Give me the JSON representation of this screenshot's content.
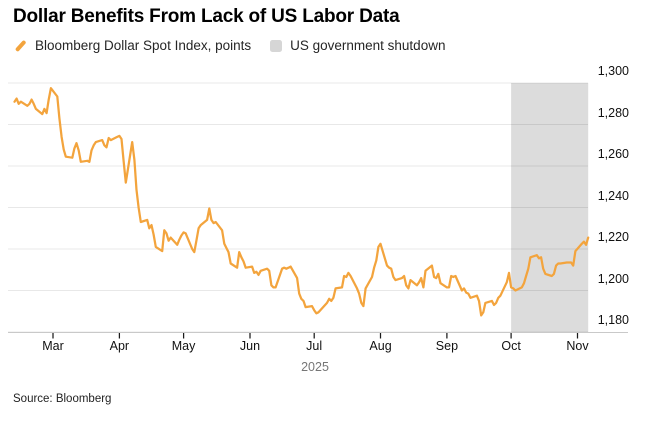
{
  "source": "Source: Bloomberg",
  "legend": {
    "items": [
      {
        "label": "Bloomberg Dollar Spot Index, points",
        "marker": "line",
        "color": "#F3A43D",
        "icon": "line-series-icon"
      },
      {
        "label": "US government shutdown",
        "marker": "square",
        "color": "#D6D6D6",
        "icon": "shutdown-swatch-icon"
      }
    ]
  },
  "chart_data": {
    "type": "line",
    "title": "Dollar Benefits From Lack of US Labor Data",
    "grid": "horizontal",
    "legend_position": "top",
    "colors": {
      "line": "#F3A43D",
      "band": "#DCDCDC",
      "axis": "#C9C9C9",
      "tick": "#1a1a1a"
    },
    "shaded_region": {
      "label": "US government shutdown",
      "start": "2025-10-01",
      "end": "2025-11-06",
      "color": "#DCDCDC"
    },
    "x_axis": {
      "year_label": "2025",
      "tick_labels": [
        "Mar",
        "Apr",
        "May",
        "Jun",
        "Jul",
        "Aug",
        "Sep",
        "Oct",
        "Nov"
      ],
      "tick_dates": [
        "2025-03-01",
        "2025-04-01",
        "2025-05-01",
        "2025-06-01",
        "2025-07-01",
        "2025-08-01",
        "2025-09-01",
        "2025-10-01",
        "2025-11-01"
      ]
    },
    "y_axis": {
      "side": "right",
      "range": [
        1180,
        1300
      ],
      "ticks": [
        {
          "value": 1300,
          "label": "1,300"
        },
        {
          "value": 1280,
          "label": "1,280"
        },
        {
          "value": 1260,
          "label": "1,260"
        },
        {
          "value": 1240,
          "label": "1,240"
        },
        {
          "value": 1220,
          "label": "1,220"
        },
        {
          "value": 1200,
          "label": "1,200"
        },
        {
          "value": 1180,
          "label": "1,180"
        }
      ]
    },
    "series": [
      {
        "name": "Bloomberg Dollar Spot Index, points",
        "color": "#F3A43D",
        "unit": "points",
        "year": "2025",
        "dates": [
          "02-11",
          "02-12",
          "02-13",
          "02-14",
          "02-17",
          "02-18",
          "02-19",
          "02-20",
          "02-21",
          "02-24",
          "02-25",
          "02-26",
          "02-27",
          "02-28",
          "03-03",
          "03-04",
          "03-05",
          "03-06",
          "03-07",
          "03-10",
          "03-11",
          "03-12",
          "03-13",
          "03-14",
          "03-17",
          "03-18",
          "03-19",
          "03-20",
          "03-21",
          "03-24",
          "03-25",
          "03-26",
          "03-27",
          "03-28",
          "03-31",
          "04-01",
          "04-02",
          "04-03",
          "04-04",
          "04-07",
          "04-08",
          "04-09",
          "04-10",
          "04-11",
          "04-14",
          "04-15",
          "04-16",
          "04-17",
          "04-18",
          "04-21",
          "04-22",
          "04-23",
          "04-24",
          "04-25",
          "04-28",
          "04-29",
          "04-30",
          "05-01",
          "05-02",
          "05-05",
          "05-06",
          "05-07",
          "05-08",
          "05-09",
          "05-12",
          "05-13",
          "05-14",
          "05-15",
          "05-16",
          "05-19",
          "05-20",
          "05-21",
          "05-22",
          "05-23",
          "05-26",
          "05-27",
          "05-28",
          "05-29",
          "05-30",
          "06-02",
          "06-03",
          "06-04",
          "06-05",
          "06-06",
          "06-09",
          "06-10",
          "06-11",
          "06-12",
          "06-13",
          "06-16",
          "06-17",
          "06-18",
          "06-19",
          "06-20",
          "06-23",
          "06-24",
          "06-25",
          "06-26",
          "06-27",
          "06-30",
          "07-01",
          "07-02",
          "07-03",
          "07-07",
          "07-08",
          "07-09",
          "07-10",
          "07-11",
          "07-14",
          "07-15",
          "07-16",
          "07-17",
          "07-18",
          "07-21",
          "07-22",
          "07-23",
          "07-24",
          "07-25",
          "07-28",
          "07-29",
          "07-30",
          "07-31",
          "08-01",
          "08-04",
          "08-05",
          "08-06",
          "08-07",
          "08-08",
          "08-11",
          "08-12",
          "08-13",
          "08-14",
          "08-15",
          "08-18",
          "08-19",
          "08-20",
          "08-21",
          "08-22",
          "08-25",
          "08-26",
          "08-27",
          "08-28",
          "08-29",
          "09-01",
          "09-02",
          "09-03",
          "09-04",
          "09-05",
          "09-08",
          "09-09",
          "09-10",
          "09-11",
          "09-12",
          "09-15",
          "09-16",
          "09-17",
          "09-18",
          "09-19",
          "09-22",
          "09-23",
          "09-24",
          "09-25",
          "09-26",
          "09-29",
          "09-30",
          "10-01",
          "10-02",
          "10-03",
          "10-06",
          "10-07",
          "10-08",
          "10-09",
          "10-10",
          "10-13",
          "10-14",
          "10-15",
          "10-16",
          "10-17",
          "10-20",
          "10-21",
          "10-22",
          "10-23",
          "10-24",
          "10-27",
          "10-28",
          "10-29",
          "10-30",
          "10-31",
          "11-03",
          "11-04",
          "11-05",
          "11-06"
        ],
        "values": [
          1291,
          1292.5,
          1290,
          1291,
          1289,
          1290,
          1292,
          1290,
          1287.5,
          1285,
          1287.5,
          1285.5,
          1292,
          1297.5,
          1293.5,
          1283,
          1274,
          1268,
          1264.5,
          1264,
          1268.5,
          1271,
          1267.5,
          1262,
          1262.5,
          1262,
          1267.5,
          1270,
          1271.5,
          1272.5,
          1270,
          1269,
          1273.5,
          1272.5,
          1274,
          1274.5,
          1273,
          1262.5,
          1252,
          1271.5,
          1263,
          1248.5,
          1240,
          1233,
          1234,
          1230,
          1231.5,
          1227,
          1221,
          1219,
          1229,
          1227.5,
          1224,
          1225.5,
          1222,
          1224.5,
          1226.5,
          1228,
          1227.5,
          1220,
          1218.5,
          1224,
          1230,
          1231.5,
          1234,
          1239.5,
          1234,
          1232.5,
          1233,
          1229,
          1222.5,
          1220.5,
          1218.5,
          1213,
          1211,
          1218.5,
          1216,
          1214,
          1211,
          1211.5,
          1208.5,
          1209,
          1207.5,
          1209.5,
          1210.5,
          1209.5,
          1202.5,
          1201.5,
          1201.5,
          1210.5,
          1211,
          1210.5,
          1211,
          1211.5,
          1206,
          1198.5,
          1196,
          1195,
          1192,
          1192.5,
          1190.5,
          1189,
          1189.5,
          1194,
          1196,
          1195,
          1196.5,
          1201,
          1201.5,
          1207,
          1206.5,
          1208.5,
          1207,
          1201,
          1198.5,
          1194,
          1192.5,
          1201,
          1206.5,
          1211,
          1214.5,
          1221,
          1222.5,
          1212,
          1211,
          1210.5,
          1206.5,
          1205,
          1206,
          1207,
          1202.5,
          1201,
          1205,
          1202.5,
          1204,
          1206,
          1201.5,
          1209.5,
          1212,
          1206.5,
          1206,
          1208,
          1203.5,
          1201.5,
          1201.5,
          1207,
          1206.5,
          1207,
          1200,
          1201,
          1199,
          1198.5,
          1196.5,
          1197.5,
          1195,
          1188,
          1189.5,
          1194,
          1195,
          1193,
          1194,
          1196.5,
          1197.5,
          1204,
          1208.5,
          1201.5,
          1201,
          1200,
          1201.5,
          1203.5,
          1207,
          1210.5,
          1216,
          1217,
          1215.5,
          1216,
          1210.5,
          1208,
          1207,
          1208,
          1212,
          1213,
          1213,
          1213.5,
          1213.5,
          1213.5,
          1212,
          1219,
          1222.5,
          1223.5,
          1222,
          1225.5
        ]
      }
    ]
  }
}
